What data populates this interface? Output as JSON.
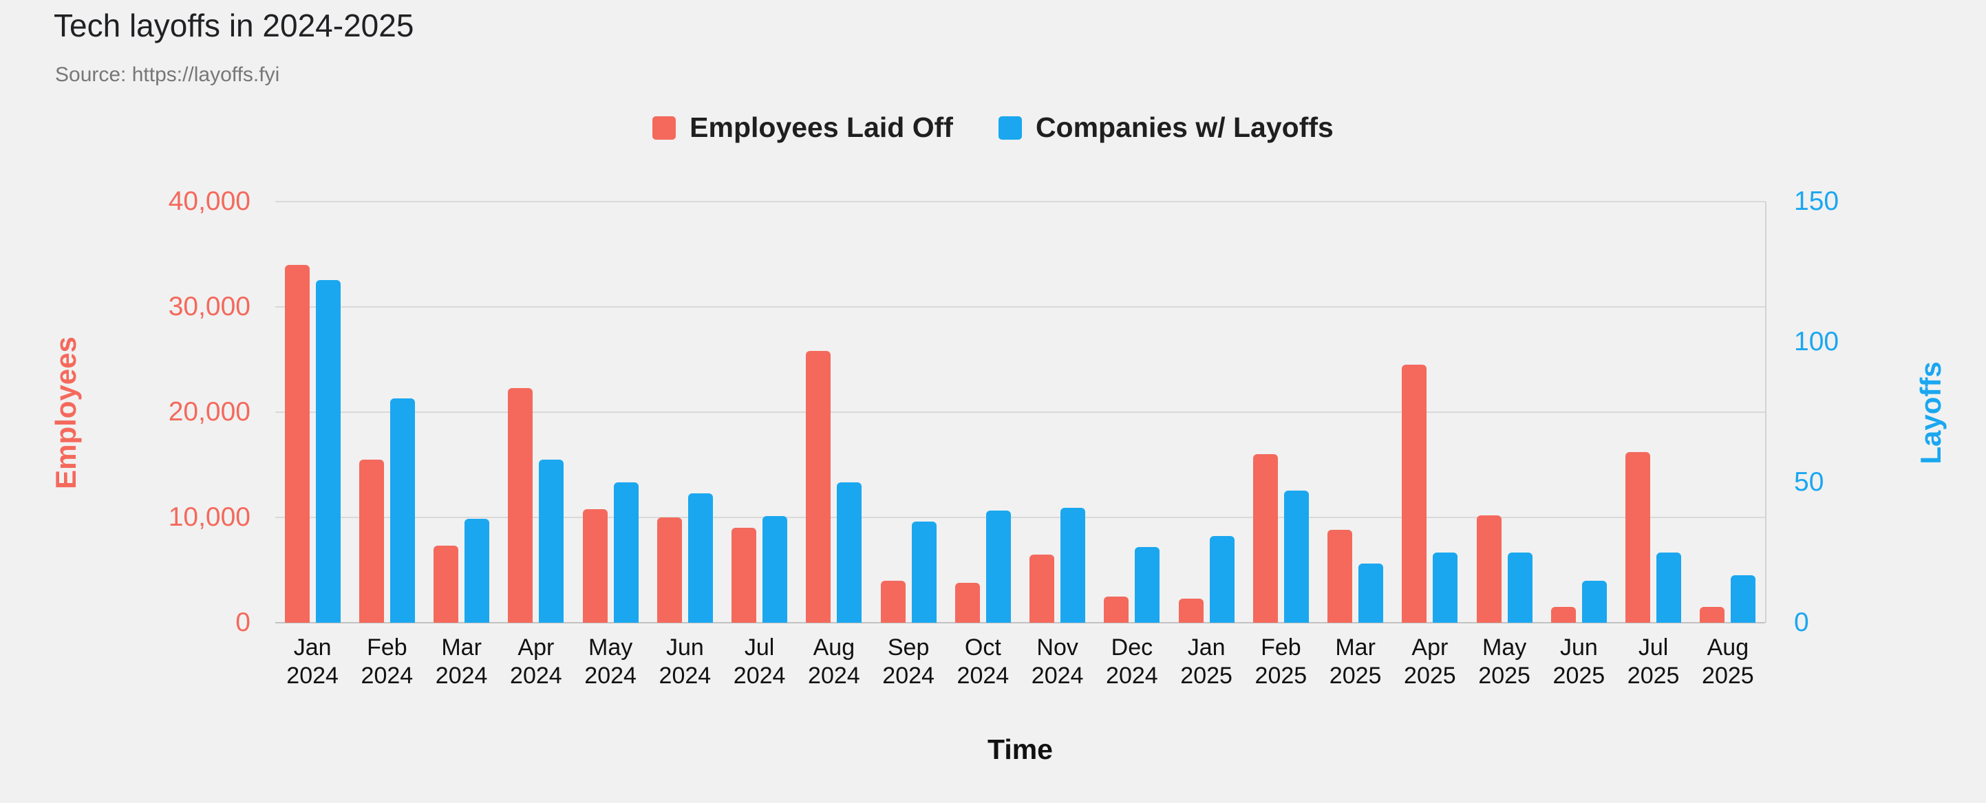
{
  "chart_data": {
    "type": "bar",
    "title": "Tech layoffs in 2024-2025",
    "subtitle": "Source: https://layoffs.fyi",
    "xlabel": "Time",
    "legend_position": "top",
    "grid": true,
    "background_color": "#f1f1f1",
    "categories": [
      "Jan 2024",
      "Feb 2024",
      "Mar 2024",
      "Apr 2024",
      "May 2024",
      "Jun 2024",
      "Jul 2024",
      "Aug 2024",
      "Sep 2024",
      "Oct 2024",
      "Nov 2024",
      "Dec 2024",
      "Jan 2025",
      "Feb 2025",
      "Mar 2025",
      "Apr 2025",
      "May 2025",
      "Jun 2025",
      "Jul 2025",
      "Aug 2025"
    ],
    "series": [
      {
        "name": "Employees Laid Off",
        "axis": "left",
        "color": "#f4695c",
        "values": [
          34000,
          15500,
          7300,
          22300,
          10800,
          10000,
          9000,
          25800,
          4000,
          3800,
          6500,
          2500,
          2300,
          16000,
          8800,
          24500,
          10200,
          1500,
          16200,
          1500
        ]
      },
      {
        "name": "Companies w/ Layoffs",
        "axis": "right",
        "color": "#1aa7f0",
        "values": [
          122,
          80,
          37,
          58,
          50,
          46,
          38,
          50,
          36,
          40,
          41,
          27,
          31,
          47,
          21,
          25,
          25,
          15,
          25,
          17
        ]
      }
    ],
    "left_axis": {
      "label": "Employees",
      "min": 0,
      "max": 40000,
      "ticks": [
        0,
        10000,
        20000,
        30000,
        40000
      ],
      "color": "#f4695c"
    },
    "right_axis": {
      "label": "Layoffs",
      "min": 0,
      "max": 150,
      "ticks": [
        0,
        50,
        100,
        150
      ],
      "color": "#1aa7f0"
    }
  }
}
